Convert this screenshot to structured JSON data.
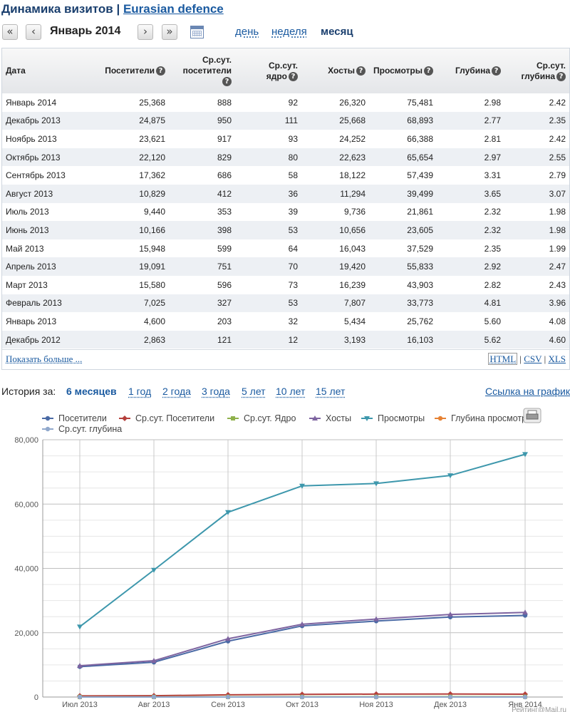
{
  "header": {
    "title_prefix": "Динамика визитов | ",
    "site_link": "Eurasian defence"
  },
  "nav": {
    "first_btn": "«",
    "prev_btn": "‹",
    "next_btn": "›",
    "last_btn": "»",
    "period": "Январь 2014",
    "segments": [
      "день",
      "неделя",
      "месяц"
    ],
    "active_segment": "месяц"
  },
  "table": {
    "columns": [
      {
        "l1": "Дата",
        "l2": ""
      },
      {
        "l1": "Посетители",
        "l2": ""
      },
      {
        "l1": "Ср.сут.",
        "l2": "посетители"
      },
      {
        "l1": "Ср.сут.",
        "l2": "ядро"
      },
      {
        "l1": "Хосты",
        "l2": ""
      },
      {
        "l1": "Просмотры",
        "l2": ""
      },
      {
        "l1": "Глубина",
        "l2": ""
      },
      {
        "l1": "Ср.сут.",
        "l2": "глубина"
      }
    ],
    "rows": [
      [
        "Январь 2014",
        "25,368",
        "888",
        "92",
        "26,320",
        "75,481",
        "2.98",
        "2.42"
      ],
      [
        "Декабрь 2013",
        "24,875",
        "950",
        "111",
        "25,668",
        "68,893",
        "2.77",
        "2.35"
      ],
      [
        "Ноябрь 2013",
        "23,621",
        "917",
        "93",
        "24,252",
        "66,388",
        "2.81",
        "2.42"
      ],
      [
        "Октябрь 2013",
        "22,120",
        "829",
        "80",
        "22,623",
        "65,654",
        "2.97",
        "2.55"
      ],
      [
        "Сентябрь 2013",
        "17,362",
        "686",
        "58",
        "18,122",
        "57,439",
        "3.31",
        "2.79"
      ],
      [
        "Август 2013",
        "10,829",
        "412",
        "36",
        "11,294",
        "39,499",
        "3.65",
        "3.07"
      ],
      [
        "Июль 2013",
        "9,440",
        "353",
        "39",
        "9,736",
        "21,861",
        "2.32",
        "1.98"
      ],
      [
        "Июнь 2013",
        "10,166",
        "398",
        "53",
        "10,656",
        "23,605",
        "2.32",
        "1.98"
      ],
      [
        "Май 2013",
        "15,948",
        "599",
        "64",
        "16,043",
        "37,529",
        "2.35",
        "1.99"
      ],
      [
        "Апрель 2013",
        "19,091",
        "751",
        "70",
        "19,420",
        "55,833",
        "2.92",
        "2.47"
      ],
      [
        "Март 2013",
        "15,580",
        "596",
        "73",
        "16,239",
        "43,903",
        "2.82",
        "2.43"
      ],
      [
        "Февраль 2013",
        "7,025",
        "327",
        "53",
        "7,807",
        "33,773",
        "4.81",
        "3.96"
      ],
      [
        "Январь 2013",
        "4,600",
        "203",
        "32",
        "5,434",
        "25,762",
        "5.60",
        "4.08"
      ],
      [
        "Декабрь 2012",
        "2,863",
        "121",
        "12",
        "3,193",
        "16,103",
        "5.62",
        "4.60"
      ]
    ],
    "show_more": "Показать больше ...",
    "exports": [
      "HTML",
      "CSV",
      "XLS"
    ],
    "export_sep": "|"
  },
  "history": {
    "label": "История за:",
    "options": [
      "6 месяцев",
      "1 год",
      "2 года",
      "3 года",
      "5 лет",
      "10 лет",
      "15 лет"
    ],
    "active": "6 месяцев",
    "chart_link": "Ссылка на график"
  },
  "chart_data": {
    "type": "line",
    "categories": [
      "Июл 2013",
      "Авг 2013",
      "Сен 2013",
      "Окт 2013",
      "Ноя 2013",
      "Дек 2013",
      "Янв 2014"
    ],
    "ylim": [
      0,
      80000
    ],
    "yticks": [
      0,
      20000,
      40000,
      60000,
      80000
    ],
    "ytick_labels": [
      "0",
      "20,000",
      "40,000",
      "60,000",
      "80,000"
    ],
    "grid": true,
    "legend_position": "top",
    "series": [
      {
        "name": "Посетители",
        "color": "#4a6aa5",
        "marker": "circle",
        "values": [
          9440,
          10829,
          17362,
          22120,
          23621,
          24875,
          25368
        ]
      },
      {
        "name": "Ср.сут. Посетители",
        "color": "#b5403c",
        "marker": "diamond",
        "values": [
          353,
          412,
          686,
          829,
          917,
          950,
          888
        ]
      },
      {
        "name": "Ср.сут. Ядро",
        "color": "#8fb14c",
        "marker": "square",
        "values": [
          39,
          36,
          58,
          80,
          93,
          111,
          92
        ]
      },
      {
        "name": "Хосты",
        "color": "#7e64a0",
        "marker": "triangle",
        "values": [
          9736,
          11294,
          18122,
          22623,
          24252,
          25668,
          26320
        ]
      },
      {
        "name": "Просмотры",
        "color": "#3d97ac",
        "marker": "triangle-down",
        "values": [
          21861,
          39499,
          57439,
          65654,
          66388,
          68893,
          75481
        ]
      },
      {
        "name": "Глубина просмотров",
        "color": "#e68234",
        "marker": "circle",
        "values": [
          2.32,
          3.65,
          3.31,
          2.97,
          2.81,
          2.77,
          2.98
        ]
      },
      {
        "name": "Ср.сут. глубина",
        "color": "#90a8cc",
        "marker": "circle",
        "values": [
          1.98,
          3.07,
          2.79,
          2.55,
          2.42,
          2.35,
          2.42
        ]
      }
    ],
    "legend_labels": [
      "Посетители",
      "Ср.сут. Посетители",
      "Ср.сут. Ядро",
      "Хосты",
      "Просмотры",
      "Глубина просмотров",
      "Ср.сут. глубина"
    ],
    "credit": "Рейтинг@Mail.ru"
  },
  "colors": {
    "link": "#1a5aa0",
    "title": "#1a3f6e",
    "row_alt": "#edf0f4"
  },
  "icons": {
    "calendar": "calendar-icon",
    "print": "printer-icon",
    "help": "help-icon"
  }
}
